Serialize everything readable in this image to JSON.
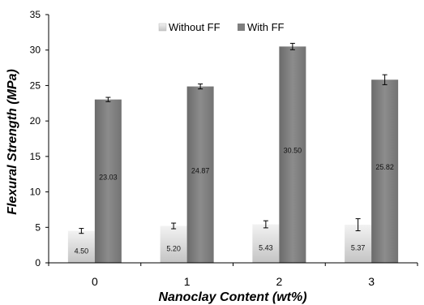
{
  "chart_data": {
    "type": "bar",
    "categories": [
      "0",
      "1",
      "2",
      "3"
    ],
    "series": [
      {
        "name": "Without FF",
        "values": [
          4.5,
          5.2,
          5.43,
          5.37
        ],
        "errors": [
          0.35,
          0.4,
          0.5,
          0.85
        ],
        "labels": [
          "4.50",
          "5.20",
          "5.43",
          "5.37"
        ],
        "color": "#d9d9d9"
      },
      {
        "name": "With FF",
        "values": [
          23.03,
          24.87,
          30.5,
          25.82
        ],
        "errors": [
          0.3,
          0.35,
          0.45,
          0.7
        ],
        "labels": [
          "23.03",
          "24.87",
          "30.50",
          "25.82"
        ],
        "color": "#7f7f7f"
      }
    ],
    "title": "",
    "xlabel": "Nanoclay Content (wt%)",
    "ylabel": "Flexural Strength (MPa)",
    "ylim": [
      0,
      35
    ],
    "yticks": [
      "0",
      "5",
      "10",
      "15",
      "20",
      "25",
      "30",
      "35"
    ],
    "grid": false,
    "legend": "top-center"
  }
}
